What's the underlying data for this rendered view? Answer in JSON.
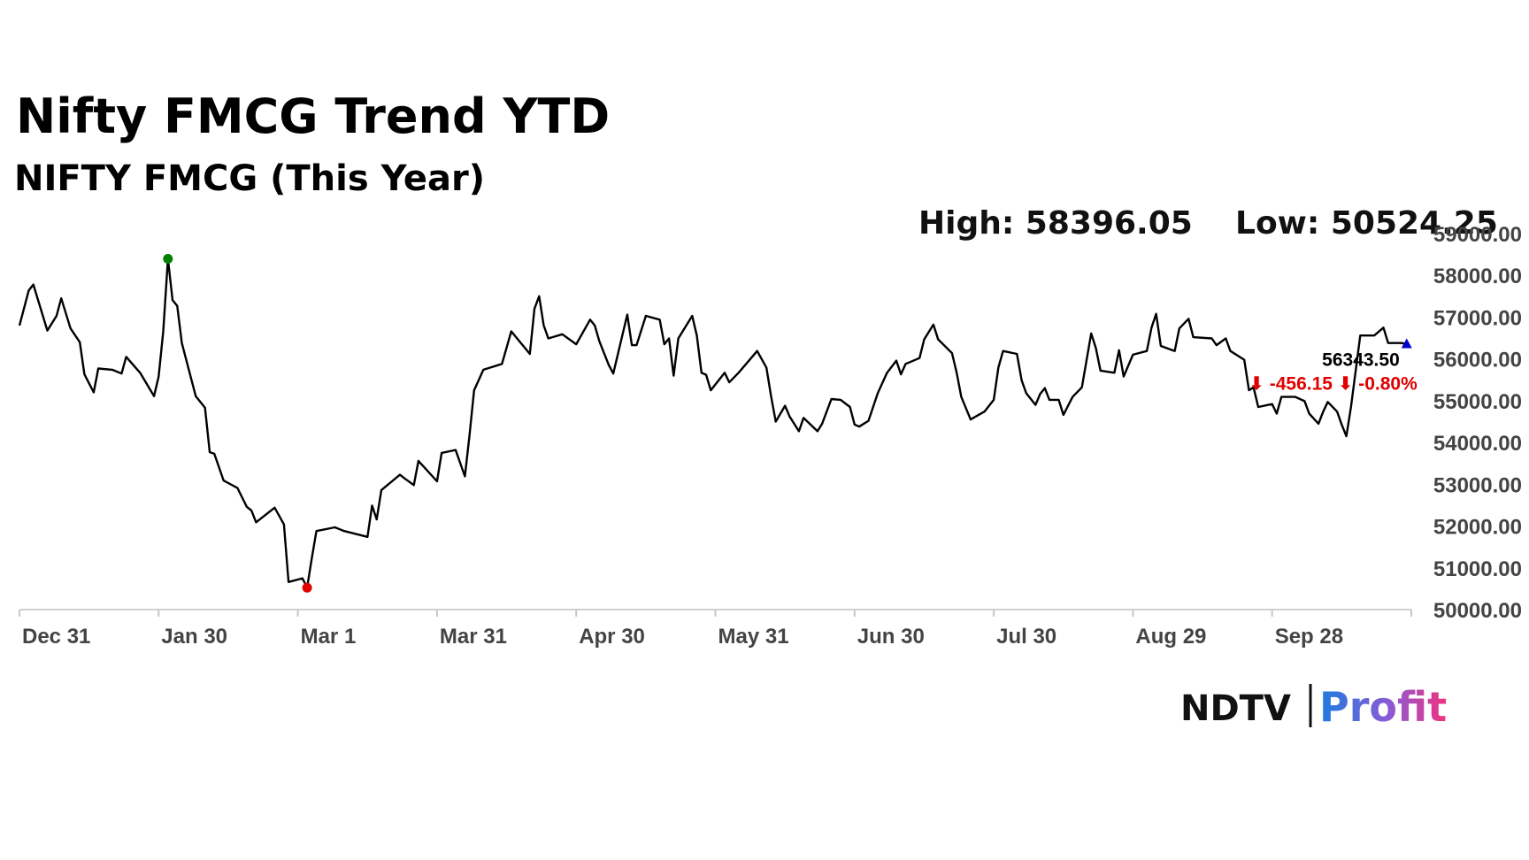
{
  "chart_data": {
    "type": "line",
    "title": "Nifty FMCG Trend YTD",
    "subtitle": "NIFTY FMCG (This Year)",
    "high_label": "High: 58396.05",
    "low_label": "Low: 50524.25",
    "last_label": "56343.50",
    "change_label": "⬇ -456.15 ⬇ -0.80%",
    "logo": [
      "NDTV",
      "Profit"
    ],
    "xlim": [
      0,
      300
    ],
    "ylim": [
      50000,
      59000
    ],
    "xticks": [
      {
        "value": 0,
        "label": "Dec 31"
      },
      {
        "value": 30,
        "label": "Jan 30"
      },
      {
        "value": 60,
        "label": "Mar 1"
      },
      {
        "value": 90,
        "label": "Mar 31"
      },
      {
        "value": 120,
        "label": "Apr 30"
      },
      {
        "value": 150,
        "label": "May 31"
      },
      {
        "value": 180,
        "label": "Jun 30"
      },
      {
        "value": 210,
        "label": "Jul 30"
      },
      {
        "value": 240,
        "label": "Aug 29"
      },
      {
        "value": 270,
        "label": "Sep 28"
      },
      {
        "value": 300,
        "label": null
      }
    ],
    "yticks": [
      {
        "value": 50000,
        "label": "50000.00"
      },
      {
        "value": 51000,
        "label": "51000.00"
      },
      {
        "value": 52000,
        "label": "52000.00"
      },
      {
        "value": 53000,
        "label": "53000.00"
      },
      {
        "value": 54000,
        "label": "54000.00"
      },
      {
        "value": 55000,
        "label": "55000.00"
      },
      {
        "value": 56000,
        "label": "56000.00"
      },
      {
        "value": 57000,
        "label": "57000.00"
      },
      {
        "value": 58000,
        "label": "58000.00"
      },
      {
        "value": 59000,
        "label": "59000.00"
      }
    ],
    "series": [
      {
        "color": "#000000",
        "high_color": "#008000",
        "low_color": "#e00000",
        "last_color": "#0000cc",
        "x": [
          0,
          2,
          3,
          6,
          8,
          9,
          11,
          13,
          14,
          16,
          17,
          20,
          22,
          23,
          26,
          29,
          30,
          31,
          32,
          33,
          34,
          35,
          38,
          40,
          41,
          42,
          44,
          47,
          49,
          50,
          51,
          55,
          57,
          58,
          61,
          62,
          63,
          64,
          68,
          70,
          75,
          76,
          77,
          78,
          82,
          83,
          85,
          86,
          90,
          91,
          94,
          96,
          97,
          98,
          100,
          104,
          106,
          110,
          111,
          112,
          113,
          114,
          117,
          120,
          123,
          124,
          125,
          127,
          128,
          131,
          132,
          133,
          135,
          138,
          139,
          140,
          141,
          142,
          145,
          146,
          147,
          148,
          149,
          152,
          153,
          155,
          159,
          161,
          162,
          163,
          165,
          166,
          168,
          169,
          172,
          173,
          175,
          177,
          179,
          180,
          181,
          183,
          185,
          187,
          189,
          190,
          191,
          194,
          195,
          197,
          198,
          201,
          202,
          203,
          205,
          208,
          210,
          211,
          212,
          215,
          216,
          217,
          219,
          220,
          221,
          222,
          224,
          225,
          227,
          229,
          231,
          232,
          233,
          236,
          237,
          238,
          240,
          243,
          244,
          245,
          246,
          249,
          250,
          252,
          253,
          257,
          258,
          260,
          261,
          264,
          265,
          266,
          267,
          270,
          271,
          272,
          275,
          277,
          278,
          280,
          281,
          282,
          284,
          285,
          286,
          287,
          289,
          292,
          294,
          295,
          298,
          299
        ],
        "values": [
          56800,
          57640,
          57780,
          56680,
          57030,
          57450,
          56730,
          56400,
          55630,
          55200,
          55770,
          55740,
          55650,
          56050,
          55670,
          55110,
          55580,
          56660,
          58396.05,
          57410,
          57270,
          56380,
          55110,
          54830,
          53770,
          53730,
          53090,
          52910,
          52460,
          52370,
          52090,
          52440,
          52040,
          50660,
          50750,
          50524.25,
          51220,
          51880,
          51970,
          51880,
          51740,
          52490,
          52160,
          52860,
          53230,
          53140,
          52980,
          53560,
          53070,
          53750,
          53820,
          53190,
          54170,
          55250,
          55740,
          55880,
          56660,
          56120,
          57200,
          57500,
          56800,
          56490,
          56590,
          56350,
          56940,
          56800,
          56420,
          55860,
          55650,
          57060,
          56330,
          56330,
          57030,
          56940,
          56350,
          56490,
          55600,
          56490,
          57030,
          56560,
          55670,
          55620,
          55250,
          55670,
          55440,
          55670,
          56190,
          55790,
          55110,
          54500,
          54880,
          54620,
          54270,
          54590,
          54270,
          54450,
          55040,
          55020,
          54850,
          54430,
          54380,
          54520,
          55180,
          55670,
          55960,
          55630,
          55880,
          56020,
          56470,
          56820,
          56470,
          56140,
          55670,
          55090,
          54550,
          54740,
          55020,
          55790,
          56190,
          56120,
          55490,
          55180,
          54900,
          55160,
          55300,
          55020,
          55020,
          54660,
          55090,
          55320,
          56610,
          56260,
          55720,
          55670,
          56210,
          55580,
          56100,
          56190,
          56750,
          57080,
          56310,
          56190,
          56730,
          56960,
          56520,
          56490,
          56330,
          56490,
          56190,
          55980,
          55250,
          55320,
          54850,
          54920,
          54690,
          55090,
          55090,
          54990,
          54690,
          54450,
          54740,
          54970,
          54740,
          54430,
          54150,
          54850,
          56560,
          56560,
          56750,
          56380,
          56380,
          56343.5
        ]
      }
    ]
  }
}
